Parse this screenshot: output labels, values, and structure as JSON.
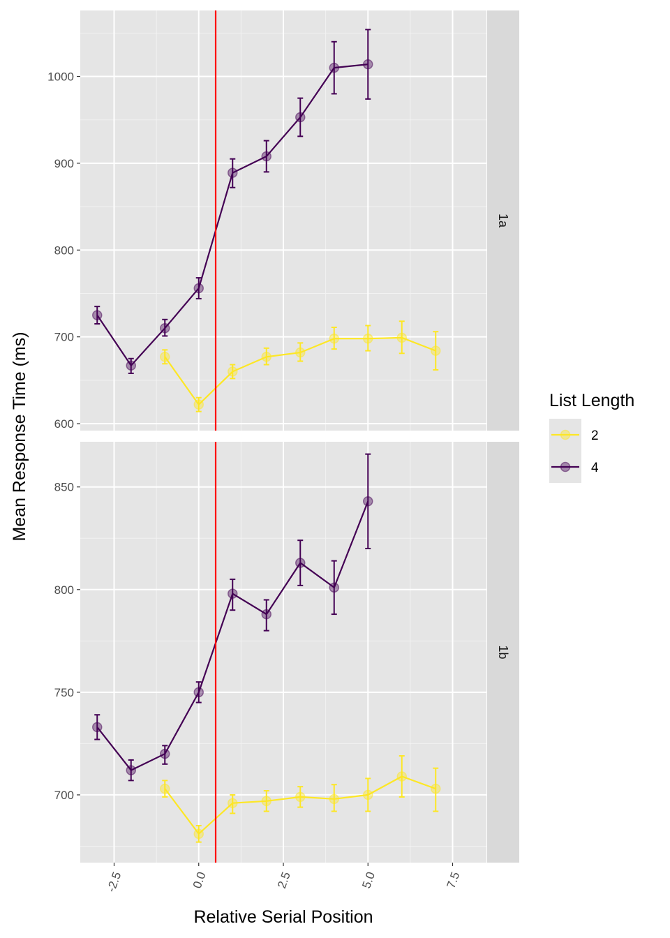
{
  "chart_data": {
    "type": "line",
    "xlabel": "Relative Serial Position",
    "ylabel": "Mean Response Time (ms)",
    "x_ticks": [
      "-2.5",
      "0.0",
      "2.5",
      "5.0",
      "7.5"
    ],
    "x_tick_values": [
      -2.5,
      0,
      2.5,
      5,
      7.5
    ],
    "xlim": [
      -3.5,
      8.5
    ],
    "reference_line": {
      "x": 0.5,
      "color": "#ff0000"
    },
    "legend": {
      "title": "List Length",
      "position": "right",
      "entries": [
        {
          "label": "2",
          "color": "#fde725"
        },
        {
          "label": "4",
          "color": "#440154"
        }
      ]
    },
    "panels": [
      {
        "strip": "1a",
        "ylim": [
          592,
          1076
        ],
        "y_ticks": [
          "600",
          "700",
          "800",
          "900",
          "1000"
        ],
        "y_tick_values": [
          600,
          700,
          800,
          900,
          1000
        ],
        "series": [
          {
            "name": "2",
            "color": "#fde725",
            "x": [
              -1,
              0,
              1,
              2,
              3,
              4,
              5,
              6,
              7
            ],
            "y": [
              677,
              622,
              660,
              677,
              682,
              698,
              698,
              699,
              684
            ],
            "err_low": [
              669,
              614,
              652,
              668,
              672,
              686,
              684,
              681,
              662
            ],
            "err_high": [
              685,
              630,
              668,
              687,
              693,
              711,
              713,
              718,
              706
            ]
          },
          {
            "name": "4",
            "color": "#440154",
            "x": [
              -3,
              -2,
              -1,
              0,
              1,
              2,
              3,
              4,
              5
            ],
            "y": [
              725,
              667,
              710,
              756,
              889,
              908,
              953,
              1010,
              1014
            ],
            "err_low": [
              715,
              658,
              701,
              744,
              872,
              890,
              931,
              980,
              974
            ],
            "err_high": [
              735,
              675,
              720,
              768,
              905,
              926,
              975,
              1040,
              1054
            ]
          }
        ]
      },
      {
        "strip": "1b",
        "ylim": [
          667,
          872
        ],
        "y_ticks": [
          "700",
          "750",
          "800",
          "850"
        ],
        "y_tick_values": [
          700,
          750,
          800,
          850
        ],
        "series": [
          {
            "name": "2",
            "color": "#fde725",
            "x": [
              -1,
              0,
              1,
              2,
              3,
              4,
              5,
              6,
              7
            ],
            "y": [
              703,
              681,
              696,
              697,
              699,
              698,
              700,
              709,
              703
            ],
            "err_low": [
              699,
              677,
              691,
              692,
              694,
              692,
              692,
              699,
              692
            ],
            "err_high": [
              707,
              685,
              700,
              702,
              704,
              705,
              708,
              719,
              713
            ]
          },
          {
            "name": "4",
            "color": "#440154",
            "x": [
              -3,
              -2,
              -1,
              0,
              1,
              2,
              3,
              4,
              5
            ],
            "y": [
              733,
              712,
              720,
              750,
              798,
              788,
              813,
              801,
              843
            ],
            "err_low": [
              727,
              707,
              715,
              745,
              790,
              780,
              802,
              788,
              820
            ],
            "err_high": [
              739,
              717,
              724,
              755,
              805,
              795,
              824,
              814,
              866
            ]
          }
        ]
      }
    ]
  }
}
